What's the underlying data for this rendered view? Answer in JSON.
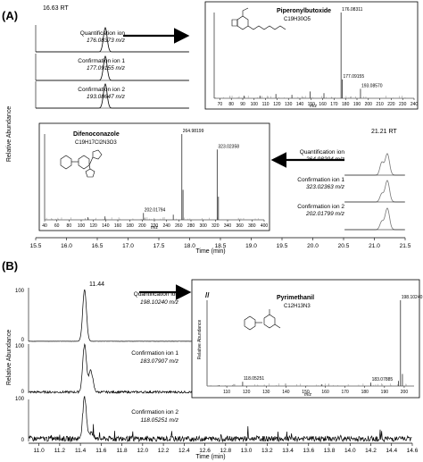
{
  "panel_labels": [
    "(A)",
    "(B)"
  ],
  "colors": {
    "trace": "#000000",
    "trace_gray": "#777777",
    "axis": "#000000",
    "arrow": "#000000",
    "spectrum_gray": "#888888"
  },
  "chart_data": [
    {
      "type": "line",
      "panel": "A",
      "ylabel": "Relative Abundance",
      "xlabel": "Time (min)",
      "xlim": [
        15.5,
        21.5
      ],
      "x_ticks": [
        "15.5",
        "16.0",
        "16.5",
        "17.0",
        "17.5",
        "18.0",
        "18.5",
        "19.0",
        "19.5",
        "20.0",
        "20.5",
        "21.0",
        "21.5"
      ],
      "peaks": [
        {
          "rt": 16.63,
          "label": "16.63 RT"
        },
        {
          "rt": 21.21,
          "label": "21.21 RT"
        }
      ],
      "series": [
        {
          "name": "Quantification ion",
          "mz": "176.08373",
          "compound": "Piperonylbutoxide"
        },
        {
          "name": "Confirmation ion 1",
          "mz": "177.09155",
          "compound": "Piperonylbutoxide"
        },
        {
          "name": "Confirmation ion 2",
          "mz": "193.08647",
          "compound": "Piperonylbutoxide"
        },
        {
          "name": "Quantification ion",
          "mz": "264.98204",
          "compound": "Difenoconazole"
        },
        {
          "name": "Confirmation ion 1",
          "mz": "323.02363",
          "compound": "Difenoconazole"
        },
        {
          "name": "Confirmation ion 2",
          "mz": "202.01799",
          "compound": "Difenoconazole"
        }
      ],
      "mz_unit": "m/z"
    },
    {
      "type": "bar",
      "inset": "A-top",
      "compound": "Piperonylbutoxide",
      "formula": "C19H30O5",
      "xlabel": "m/z",
      "xlim": [
        65,
        240
      ],
      "x_ticks": [
        "70",
        "80",
        "90",
        "100",
        "110",
        "120",
        "130",
        "140",
        "150",
        "160",
        "170",
        "180",
        "190",
        "200",
        "210",
        "220",
        "230",
        "240"
      ],
      "peaks": [
        {
          "mz": 176.08311,
          "rel": 100,
          "label": "176.08311"
        },
        {
          "mz": 177.09155,
          "rel": 22,
          "label": "177.09155"
        },
        {
          "mz": 193.0857,
          "rel": 11,
          "label": "193.08570"
        },
        {
          "mz": 149.02,
          "rel": 8
        },
        {
          "mz": 161.1,
          "rel": 6
        },
        {
          "mz": 119.05,
          "rel": 5
        },
        {
          "mz": 133.06,
          "rel": 4
        },
        {
          "mz": 91.05,
          "rel": 3
        },
        {
          "mz": 105.07,
          "rel": 3
        }
      ]
    },
    {
      "type": "bar",
      "inset": "A-middle",
      "compound": "Difenoconazole",
      "formula": "C19H17Cl2N3O3",
      "xlabel": "m/z",
      "xlim": [
        40,
        400
      ],
      "x_ticks": [
        "40",
        "60",
        "80",
        "100",
        "120",
        "140",
        "160",
        "180",
        "200",
        "220",
        "240",
        "260",
        "280",
        "300",
        "320",
        "340",
        "360",
        "380",
        "400"
      ],
      "peaks": [
        {
          "mz": 264.98199,
          "rel": 100,
          "label": "264.98199"
        },
        {
          "mz": 323.02358,
          "rel": 82,
          "label": "323.02358"
        },
        {
          "mz": 202.01794,
          "rel": 8,
          "label": "202.01794"
        },
        {
          "mz": 266.98,
          "rel": 35
        },
        {
          "mz": 325.02,
          "rel": 27
        },
        {
          "mz": 251.0,
          "rel": 6
        },
        {
          "mz": 139.0,
          "rel": 4
        },
        {
          "mz": 111.0,
          "rel": 3
        }
      ]
    },
    {
      "type": "line",
      "panel": "B",
      "ylabel": "Relative Abundance",
      "xlabel": "Time (min)",
      "xlim": [
        10.9,
        14.6
      ],
      "x_ticks": [
        "11.0",
        "11.2",
        "11.4",
        "11.6",
        "11.8",
        "12.0",
        "12.2",
        "12.4",
        "12.6",
        "12.8",
        "13.0",
        "13.2",
        "13.4",
        "13.6",
        "13.8",
        "14.0",
        "14.2",
        "14.4",
        "14.6"
      ],
      "y_tick_labels": [
        "0",
        "100"
      ],
      "peaks": [
        {
          "rt": 11.44,
          "label": "11.44"
        }
      ],
      "series": [
        {
          "name": "Quantification ion",
          "mz": "198.10240",
          "compound": "Pyrimethanil"
        },
        {
          "name": "Confirmation ion 1",
          "mz": "183.07907",
          "compound": "Pyrimethanil"
        },
        {
          "name": "Confirmation ion 2",
          "mz": "118.05251",
          "compound": "Pyrimethanil"
        }
      ],
      "mz_unit": "m/z"
    },
    {
      "type": "bar",
      "inset": "B",
      "compound": "Pyrimethanil",
      "formula": "C12H13N3",
      "xlabel": "m/z",
      "ylabel": "Relative Abundance",
      "xlim": [
        100,
        205
      ],
      "x_ticks": [
        "110",
        "120",
        "130",
        "140",
        "150",
        "160",
        "170",
        "180",
        "190",
        "200"
      ],
      "peaks": [
        {
          "mz": 198.1024,
          "rel": 100,
          "label": "198.10240"
        },
        {
          "mz": 118.05251,
          "rel": 5,
          "label": "118.05251"
        },
        {
          "mz": 183.07885,
          "rel": 4,
          "label": "183.07885"
        },
        {
          "mz": 199.1,
          "rel": 14
        },
        {
          "mz": 197.09,
          "rel": 6
        },
        {
          "mz": 158.07,
          "rel": 2
        },
        {
          "mz": 106.06,
          "rel": 1
        }
      ]
    }
  ],
  "text": {
    "a_peak_left": "16.63 RT",
    "a_peak_right": "21.21 RT",
    "a_q1": "Quantification ion",
    "a_q1_mz": "176.08373 m/z",
    "a_c1": "Confirmation ion 1",
    "a_c1_mz": "177.09155 m/z",
    "a_c2": "Confirmation ion 2",
    "a_c2_mz": "193.08647 m/z",
    "a_q2": "Quantification ion",
    "a_q2_mz": "264.98204 m/z",
    "a_c3": "Confirmation ion 1",
    "a_c3_mz": "323.02363 m/z",
    "a_c4": "Confirmation ion 2",
    "a_c4_mz": "202.01799 m/z",
    "b_peak": "11.44",
    "b_q": "Quantification ion",
    "b_q_mz": "198.10240 m/z",
    "b_c1": "Confirmation ion 1",
    "b_c1_mz": "183.07907 m/z",
    "b_c2": "Confirmation ion 2",
    "b_c2_mz": "118.05251 m/z",
    "ylabel": "Relative Abundance",
    "xlabel": "Time (min)",
    "mz": "m/z",
    "y0": "0",
    "y100": "100",
    "pbo_name": "Piperonylbutoxide",
    "pbo_formula": "C19H30O5",
    "dif_name": "Difenoconazole",
    "dif_formula": "C19H17Cl2N3O3",
    "pyr_name": "Pyrimethanil",
    "pyr_formula": "C12H13N3"
  }
}
